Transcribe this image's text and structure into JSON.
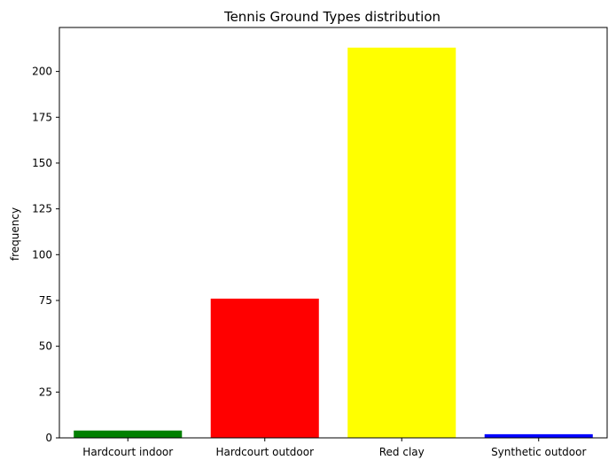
{
  "chart_data": {
    "type": "bar",
    "title": "Tennis Ground Types distribution",
    "xlabel": "",
    "ylabel": "frequency",
    "categories": [
      "Hardcourt indoor",
      "Hardcourt outdoor",
      "Red clay",
      "Synthetic outdoor"
    ],
    "values": [
      4,
      76,
      213,
      2
    ],
    "colors": [
      "#008000",
      "#ff0000",
      "#ffff00",
      "#0000ff"
    ],
    "ylim": [
      0,
      224
    ],
    "yticks": [
      0,
      25,
      50,
      75,
      100,
      125,
      150,
      175,
      200
    ],
    "grid": false,
    "legend": "none"
  }
}
